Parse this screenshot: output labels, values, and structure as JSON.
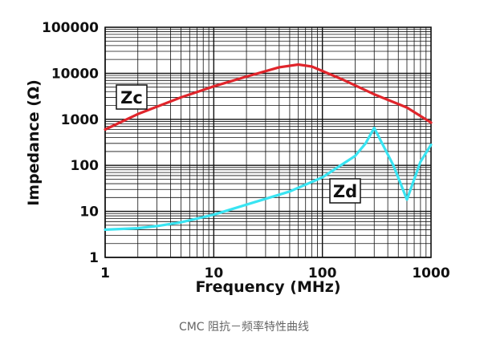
{
  "caption": "CMC 阻抗－频率特性曲线",
  "chart_data": {
    "type": "line",
    "title": "",
    "xlabel": "Frequency (MHz)",
    "ylabel": "Impedance (Ω)",
    "xscale": "log",
    "yscale": "log",
    "xlim": [
      1,
      1000
    ],
    "ylim": [
      1,
      100000
    ],
    "x_tick_labels": [
      "1",
      "10",
      "100",
      "1000"
    ],
    "y_tick_labels": [
      "1",
      "10",
      "100",
      "1000",
      "10000",
      "100000"
    ],
    "grid": true,
    "series": [
      {
        "name": "Zc",
        "color": "#e0252b",
        "points": [
          [
            1,
            600
          ],
          [
            2,
            1300
          ],
          [
            5,
            3000
          ],
          [
            10,
            5200
          ],
          [
            20,
            8500
          ],
          [
            40,
            13500
          ],
          [
            60,
            15500
          ],
          [
            80,
            14000
          ],
          [
            150,
            7500
          ],
          [
            300,
            3500
          ],
          [
            600,
            1800
          ],
          [
            1000,
            850
          ]
        ]
      },
      {
        "name": "Zd",
        "color": "#39e4f2",
        "points": [
          [
            1,
            4
          ],
          [
            2,
            4.3
          ],
          [
            3,
            4.8
          ],
          [
            5,
            5.8
          ],
          [
            10,
            8.5
          ],
          [
            20,
            14
          ],
          [
            50,
            27
          ],
          [
            100,
            55
          ],
          [
            200,
            160
          ],
          [
            250,
            300
          ],
          [
            300,
            650
          ],
          [
            450,
            100
          ],
          [
            600,
            18
          ],
          [
            800,
            120
          ],
          [
            1000,
            280
          ]
        ]
      }
    ]
  }
}
